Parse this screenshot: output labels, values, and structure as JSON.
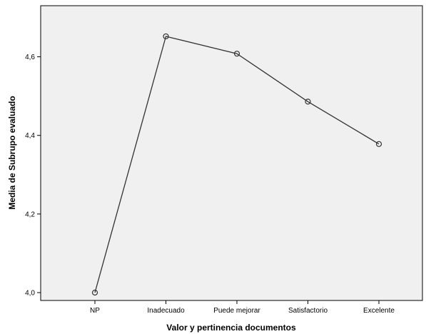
{
  "chart_data": {
    "type": "line",
    "title": "",
    "xlabel": "Valor y pertinencia documentos",
    "ylabel": "Media de Subrupo evaluado",
    "categories": [
      "NP",
      "Inadecuado",
      "Puede mejorar",
      "Satisfactorio",
      "Excelente"
    ],
    "series": [
      {
        "values": [
          4.0,
          4.652,
          4.608,
          4.486,
          4.378
        ]
      }
    ],
    "ylim": [
      3.98,
      4.73
    ],
    "yticks": [
      4.0,
      4.2,
      4.4,
      4.6
    ],
    "ytick_labels": [
      "4,0",
      "4,2",
      "4,4",
      "4,6"
    ],
    "grid": false,
    "colors": {
      "plot_background": "#f0f0f0",
      "line": "#333333",
      "marker_edge": "#333333"
    },
    "marker": "open-circle"
  }
}
